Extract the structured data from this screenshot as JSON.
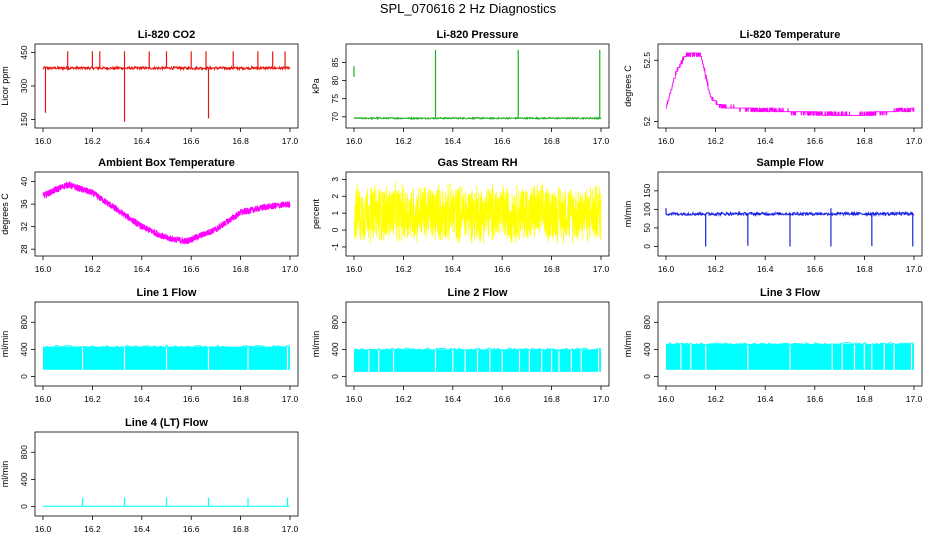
{
  "title": "SPL_070616  2 Hz Diagnostics",
  "chart_data": [
    {
      "id": "co2",
      "type": "line",
      "title": "Li-820 CO2",
      "ylabel": "Licor ppm",
      "color": "#e8140f",
      "xlim": [
        16.0,
        17.0
      ],
      "ylim": [
        130,
        470
      ],
      "yticks": [
        150,
        300,
        450
      ],
      "baseline": 380,
      "noise": 6,
      "spikes_up": [
        16.1,
        16.2,
        16.23,
        16.33,
        16.43,
        16.5,
        16.6,
        16.66,
        16.77,
        16.87,
        16.93,
        16.98
      ],
      "spike_up_to": 455,
      "spikes_down": [
        {
          "x": 16.01,
          "to": 180
        },
        {
          "x": 16.33,
          "to": 140
        },
        {
          "x": 16.67,
          "to": 155
        }
      ]
    },
    {
      "id": "pressure",
      "type": "line",
      "title": "Li-820 Pressure",
      "ylabel": "kPa",
      "color": "#20b020",
      "xlim": [
        16.0,
        17.0
      ],
      "ylim": [
        68,
        89
      ],
      "yticks": [
        70,
        75,
        80,
        85
      ],
      "baseline": 69.6,
      "noise": 0.2,
      "spikes_up": [
        16.33,
        16.665,
        16.995
      ],
      "spike_up_to": 88.5,
      "spikes_down": [],
      "start_segment": {
        "x": 16.0,
        "from": 81,
        "to": 84
      }
    },
    {
      "id": "temp",
      "type": "line",
      "title": "Li-820 Temperature",
      "ylabel": "degrees C",
      "color": "#ff00ff",
      "xlim": [
        16.0,
        17.0
      ],
      "ylim": [
        51.98,
        52.6
      ],
      "yticks": [
        52.0,
        52.5
      ],
      "profile": [
        [
          16.0,
          52.1
        ],
        [
          16.04,
          52.4
        ],
        [
          16.08,
          52.55
        ],
        [
          16.14,
          52.55
        ],
        [
          16.18,
          52.2
        ],
        [
          16.22,
          52.12
        ],
        [
          16.5,
          52.08
        ],
        [
          16.76,
          52.05
        ],
        [
          17.0,
          52.1
        ]
      ],
      "noise": 0.03
    },
    {
      "id": "ambient",
      "type": "line",
      "title": "Ambient Box Temperature",
      "ylabel": "degrees C",
      "color": "#ff00ff",
      "xlim": [
        16.0,
        17.0
      ],
      "ylim": [
        27.5,
        41
      ],
      "yticks": [
        28,
        32,
        36,
        40
      ],
      "profile": [
        [
          16.0,
          37.5
        ],
        [
          16.1,
          39.5
        ],
        [
          16.2,
          38
        ],
        [
          16.3,
          35
        ],
        [
          16.4,
          32
        ],
        [
          16.5,
          30
        ],
        [
          16.58,
          29.4
        ],
        [
          16.7,
          31.5
        ],
        [
          16.8,
          34.5
        ],
        [
          16.9,
          35.5
        ],
        [
          17.0,
          36
        ]
      ],
      "noise": 0.6
    },
    {
      "id": "rh",
      "type": "line",
      "title": "Gas Stream RH",
      "ylabel": "percent",
      "color": "#ffff00",
      "xlim": [
        16.0,
        17.0
      ],
      "ylim": [
        -1.3,
        3.2
      ],
      "yticks": [
        -1,
        0,
        1,
        2,
        3
      ],
      "baseline": 1.0,
      "noise": 1.9
    },
    {
      "id": "sample",
      "type": "line",
      "title": "Sample Flow",
      "ylabel": "ml/min",
      "color": "#1a24e0",
      "xlim": [
        16.0,
        17.0
      ],
      "ylim": [
        -15,
        190
      ],
      "yticks": [
        0,
        50,
        100,
        150
      ],
      "baseline": 88,
      "noise": 4,
      "spikes_up": [
        16.0,
        16.665
      ],
      "spike_up_to": 103,
      "spikes_down": [
        {
          "x": 16.16,
          "to": 0
        },
        {
          "x": 16.33,
          "to": 2
        },
        {
          "x": 16.5,
          "to": 0
        },
        {
          "x": 16.665,
          "to": 0
        },
        {
          "x": 16.83,
          "to": 1
        },
        {
          "x": 16.995,
          "to": 0
        }
      ]
    },
    {
      "id": "line1",
      "type": "line",
      "title": "Line 1 Flow",
      "ylabel": "ml/min",
      "color": "#00ffff",
      "xlim": [
        16.0,
        17.0
      ],
      "ylim": [
        -80,
        1040
      ],
      "yticks": [
        0,
        400,
        800
      ],
      "band": [
        100,
        440
      ],
      "gaps": [
        16.16,
        16.33,
        16.5,
        16.67,
        16.83,
        16.99
      ]
    },
    {
      "id": "line2",
      "type": "line",
      "title": "Line 2 Flow",
      "ylabel": "ml/min",
      "color": "#00ffff",
      "xlim": [
        16.0,
        17.0
      ],
      "ylim": [
        -80,
        1040
      ],
      "yticks": [
        0,
        400,
        800
      ],
      "band": [
        70,
        400
      ],
      "gaps": [
        16.06,
        16.1,
        16.16,
        16.33,
        16.4,
        16.45,
        16.5,
        16.55,
        16.6,
        16.67,
        16.71,
        16.76,
        16.8,
        16.83,
        16.88,
        16.92,
        16.99
      ]
    },
    {
      "id": "line3",
      "type": "line",
      "title": "Line 3 Flow",
      "ylabel": "ml/min",
      "color": "#00ffff",
      "xlim": [
        16.0,
        17.0
      ],
      "ylim": [
        -80,
        1040
      ],
      "yticks": [
        0,
        400,
        800
      ],
      "band": [
        100,
        480
      ],
      "gaps": [
        16.06,
        16.1,
        16.16,
        16.33,
        16.5,
        16.67,
        16.71,
        16.76,
        16.8,
        16.83,
        16.88,
        16.92,
        16.99
      ]
    },
    {
      "id": "line4",
      "type": "line",
      "title": "Line 4 (LT) Flow",
      "ylabel": "ml/min",
      "color": "#00ffff",
      "xlim": [
        16.0,
        17.0
      ],
      "ylim": [
        -80,
        1040
      ],
      "yticks": [
        0,
        400,
        800
      ],
      "baseline": 5,
      "noise": 3,
      "spikes_up": [
        16.16,
        16.33,
        16.5,
        16.67,
        16.83,
        16.99
      ],
      "spike_up_to": 130
    }
  ],
  "xticks": [
    16.0,
    16.2,
    16.4,
    16.6,
    16.8,
    17.0
  ],
  "xtick_labels": [
    "16.0",
    "16.2",
    "16.4",
    "16.6",
    "16.8",
    "17.0"
  ]
}
